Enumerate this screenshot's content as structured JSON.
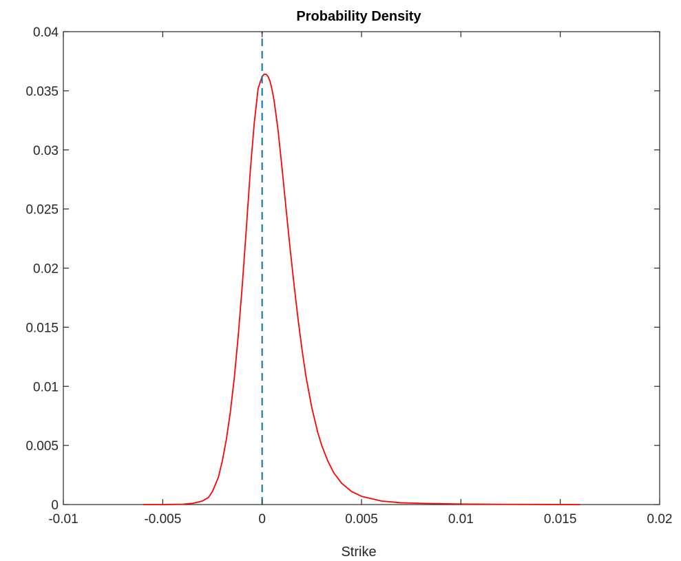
{
  "chart_data": {
    "type": "line",
    "title": "Probability Density",
    "xlabel": "Strike",
    "ylabel": "",
    "xlim": [
      -0.01,
      0.02
    ],
    "ylim": [
      0,
      0.04
    ],
    "xticks": [
      -0.01,
      -0.005,
      0,
      0.005,
      0.01,
      0.015,
      0.02
    ],
    "xtick_labels": [
      "-0.01",
      "-0.005",
      "0",
      "0.005",
      "0.01",
      "0.015",
      "0.02"
    ],
    "yticks": [
      0,
      0.005,
      0.01,
      0.015,
      0.02,
      0.025,
      0.03,
      0.035,
      0.04
    ],
    "ytick_labels": [
      "0",
      "0.005",
      "0.01",
      "0.015",
      "0.02",
      "0.025",
      "0.03",
      "0.035",
      "0.04"
    ],
    "grid": false,
    "series": [
      {
        "color": "#ff0000",
        "style": "solid",
        "x": [
          -0.006,
          -0.005,
          -0.004,
          -0.0035,
          -0.003,
          -0.0027,
          -0.0025,
          -0.0022,
          -0.002,
          -0.0018,
          -0.0016,
          -0.0014,
          -0.0012,
          -0.001,
          -0.0008,
          -0.0006,
          -0.0004,
          -0.0002,
          0.0,
          0.0001,
          0.0002,
          0.0003,
          0.0004,
          0.0005,
          0.0006,
          0.0008,
          0.001,
          0.0012,
          0.0014,
          0.0016,
          0.0018,
          0.002,
          0.0022,
          0.0025,
          0.0028,
          0.003,
          0.0033,
          0.0036,
          0.004,
          0.0045,
          0.005,
          0.006,
          0.007,
          0.008,
          0.01,
          0.012,
          0.014,
          0.016
        ],
        "y": [
          0.0,
          0.0,
          3e-05,
          0.0001,
          0.0003,
          0.0006,
          0.0011,
          0.0023,
          0.0037,
          0.0055,
          0.0078,
          0.0107,
          0.0143,
          0.0185,
          0.0232,
          0.0281,
          0.0322,
          0.0352,
          0.0362,
          0.0364,
          0.0364,
          0.0362,
          0.0358,
          0.0351,
          0.0342,
          0.0317,
          0.0285,
          0.0251,
          0.0218,
          0.0187,
          0.0158,
          0.0132,
          0.0109,
          0.0082,
          0.0061,
          0.005,
          0.0037,
          0.0027,
          0.0018,
          0.0011,
          0.0007,
          0.0003,
          0.00015,
          0.0001,
          4e-05,
          2e-05,
          1e-05,
          0.0
        ]
      },
      {
        "color": "#0072bd",
        "style": "dashed",
        "x": [
          0,
          0
        ],
        "y": [
          0,
          0.04
        ]
      }
    ]
  }
}
